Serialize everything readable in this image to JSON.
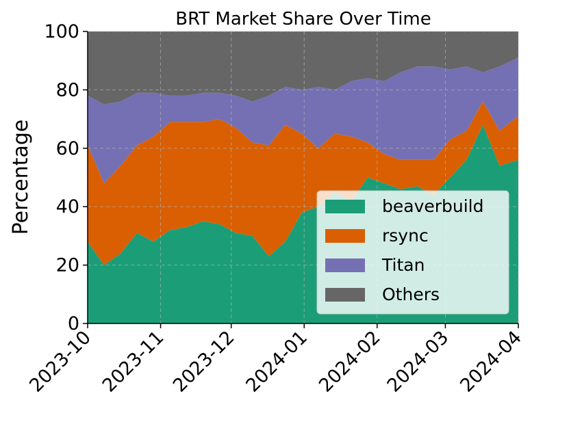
{
  "chart_data": {
    "type": "area",
    "stacked": true,
    "title": "BRT Market Share Over Time",
    "xlabel": "",
    "ylabel": "Percentage",
    "ylim": [
      0,
      100
    ],
    "yticks": [
      0,
      20,
      40,
      60,
      80,
      100
    ],
    "xlim": [
      "2023-10-01",
      "2024-04-01"
    ],
    "xticks": [
      "2023-10",
      "2023-11",
      "2023-12",
      "2024-01",
      "2024-02",
      "2024-03",
      "2024-04"
    ],
    "grid": true,
    "legend_position": "lower-right",
    "x": [
      "2023-10-01",
      "2023-10-08",
      "2023-10-15",
      "2023-10-22",
      "2023-10-29",
      "2023-11-05",
      "2023-11-12",
      "2023-11-19",
      "2023-11-26",
      "2023-12-03",
      "2023-12-10",
      "2023-12-17",
      "2023-12-24",
      "2023-12-31",
      "2024-01-07",
      "2024-01-14",
      "2024-01-21",
      "2024-01-28",
      "2024-02-04",
      "2024-02-11",
      "2024-02-18",
      "2024-02-25",
      "2024-03-03",
      "2024-03-10",
      "2024-03-17",
      "2024-03-24",
      "2024-04-01"
    ],
    "series": [
      {
        "name": "beaverbuild",
        "color": "#1b9e77",
        "values": [
          28,
          20,
          24,
          31,
          28,
          32,
          33,
          35,
          34,
          31,
          30,
          23,
          28,
          38,
          40,
          45,
          42,
          50,
          48,
          46,
          47,
          44,
          50,
          56,
          68,
          54,
          56
        ]
      },
      {
        "name": "rsync",
        "color": "#d95f02",
        "values": [
          33,
          28,
          30,
          30,
          36,
          37,
          36,
          34,
          36,
          36,
          32,
          38,
          40,
          27,
          20,
          20,
          22,
          12,
          10,
          10,
          9,
          12,
          13,
          10,
          8,
          12,
          15
        ]
      },
      {
        "name": "Titan",
        "color": "#7570b3",
        "values": [
          17,
          27,
          22,
          18,
          15,
          9,
          9,
          10,
          9,
          11,
          14,
          17,
          13,
          15,
          21,
          15,
          19,
          22,
          25,
          30,
          32,
          32,
          24,
          22,
          10,
          22,
          20
        ]
      },
      {
        "name": "Others",
        "color": "#666666",
        "values": [
          22,
          25,
          24,
          21,
          21,
          22,
          22,
          21,
          21,
          22,
          24,
          22,
          19,
          20,
          19,
          20,
          17,
          16,
          17,
          14,
          12,
          12,
          13,
          12,
          14,
          12,
          9
        ]
      }
    ]
  }
}
